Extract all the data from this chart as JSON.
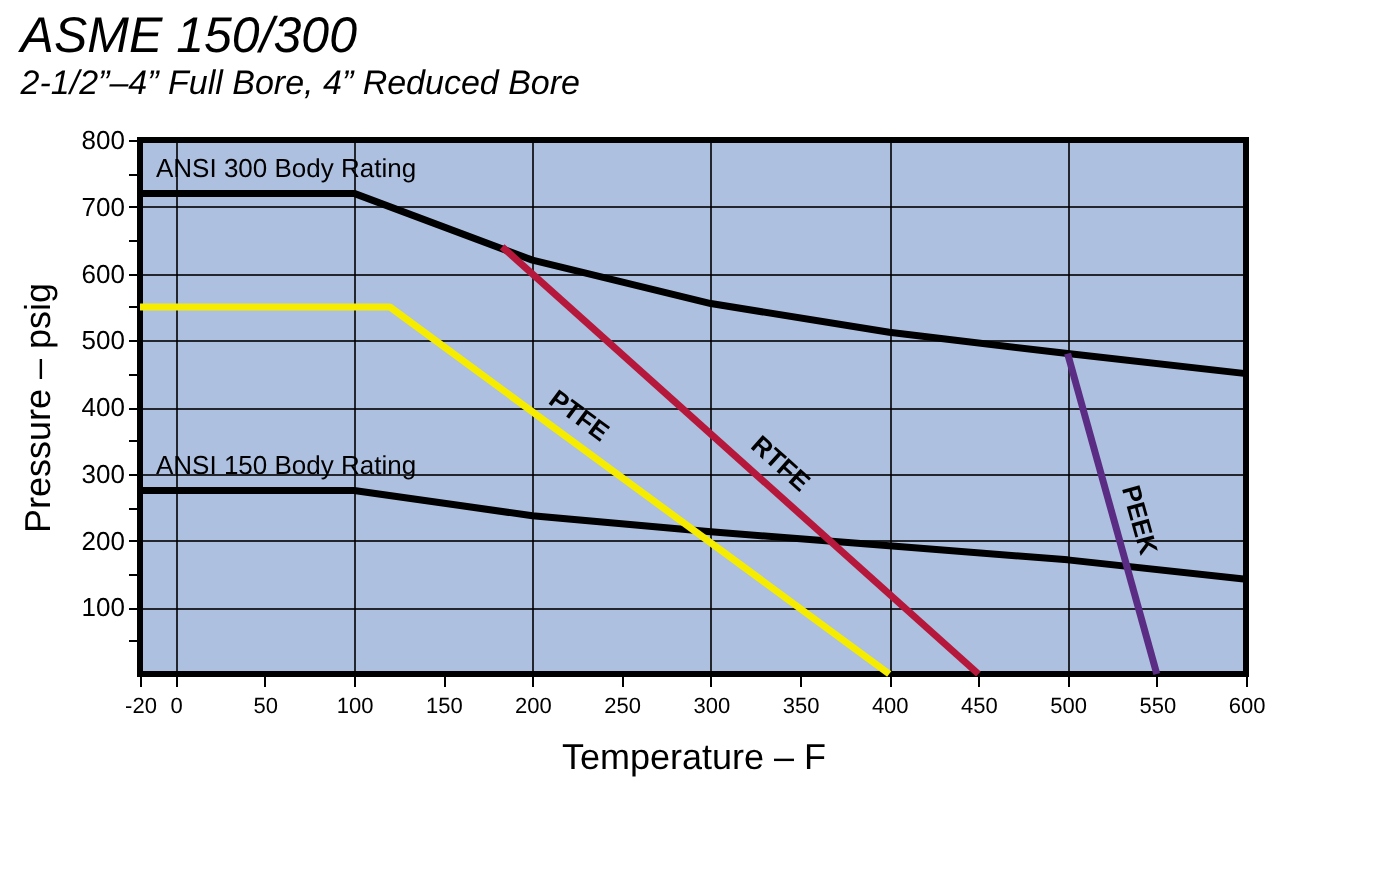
{
  "chart_data": {
    "type": "line",
    "title": "ASME 150/300",
    "subtitle": "2-1/2”–4” Full Bore, 4” Reduced Bore",
    "xlabel": "Temperature – F",
    "ylabel": "Pressure – psig",
    "xlim": [
      -20,
      600
    ],
    "xticks": [
      -20,
      0,
      50,
      100,
      150,
      200,
      250,
      300,
      350,
      400,
      450,
      500,
      550,
      600
    ],
    "ylim": [
      0,
      800
    ],
    "yticks": [
      {
        "value": 50,
        "label": null
      },
      100,
      {
        "value": 150,
        "label": null
      },
      200,
      {
        "value": 250,
        "label": null
      },
      300,
      {
        "value": 350,
        "label": null
      },
      400,
      {
        "value": 450,
        "label": null
      },
      500,
      {
        "value": 550,
        "label": null
      },
      600,
      {
        "value": 650,
        "label": null
      },
      700,
      {
        "value": 750,
        "label": null
      },
      800
    ],
    "grid": true,
    "marker": "none",
    "line_style": "solid",
    "series": [
      {
        "name": "ANSI 300 Body Rating",
        "color": "#000000",
        "x": [
          -20,
          100,
          200,
          300,
          400,
          500,
          600
        ],
        "values": [
          720,
          720,
          620,
          555,
          512,
          480,
          450
        ]
      },
      {
        "name": "ANSI 150 Body Rating",
        "color": "#000000",
        "x": [
          -20,
          100,
          200,
          300,
          400,
          500,
          600
        ],
        "values": [
          275,
          275,
          237,
          213,
          192,
          171,
          142
        ]
      },
      {
        "name": "PTFE",
        "color": "#f5ec00",
        "x": [
          -20,
          120,
          400
        ],
        "values": [
          550,
          550,
          0
        ]
      },
      {
        "name": "RTFE",
        "color": "#b5183a",
        "x": [
          183,
          450
        ],
        "values": [
          640,
          0
        ]
      },
      {
        "name": "PEEK",
        "color": "#5b2c83",
        "x": [
          500,
          550
        ],
        "values": [
          480,
          0
        ]
      }
    ]
  }
}
